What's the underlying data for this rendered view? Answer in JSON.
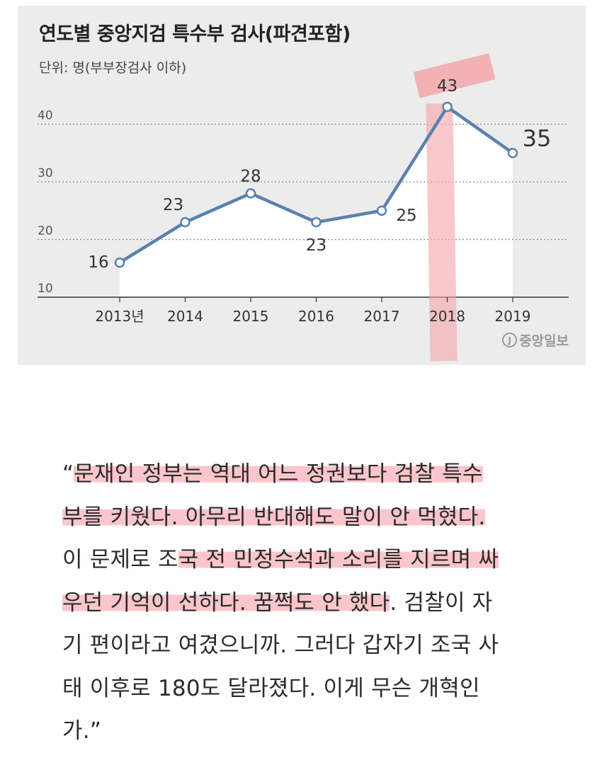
{
  "chart_data": {
    "type": "line",
    "title": "연도별 중앙지검 특수부 검사(파견포함)",
    "unit": "단위: 명(부부장검사 이하)",
    "categories": [
      "2013년",
      "2014",
      "2015",
      "2016",
      "2017",
      "2018",
      "2019"
    ],
    "values": [
      16,
      23,
      28,
      23,
      25,
      43,
      35
    ],
    "ylim": [
      10,
      45
    ],
    "y_ticks": [
      10,
      20,
      30,
      40
    ],
    "grid": "horizontal-dotted",
    "series_color": "#5b82ad",
    "highlight_color": "#f4a4a8",
    "highlight_category": "2018",
    "source": "중앙일보"
  },
  "quote": {
    "lines": [
      [
        {
          "t": "“",
          "hl": false
        },
        {
          "t": "문재인 정부는 역대 어느 정권보다 검찰 특수",
          "hl": true
        }
      ],
      [
        {
          "t": "부를 키웠다. 아무리 반대해도 말이 안 먹혔다.",
          "hl": true
        }
      ],
      [
        {
          "t": "이 문제로 조",
          "hl": false
        },
        {
          "t": "국 전 민정수석과 소리를 지르며 싸",
          "hl": true
        }
      ],
      [
        {
          "t": "우던 기억이 선하다. 꿈쩍도 안 했다",
          "hl": true
        },
        {
          "t": ". 검찰이 자",
          "hl": false
        }
      ],
      [
        {
          "t": "기 편이라고 여겼으니까. 그러다 갑자기 조국 사",
          "hl": false
        }
      ],
      [
        {
          "t": "태 이후로 180도 달라졌다. 이게 무슨 개혁인",
          "hl": false
        }
      ],
      [
        {
          "t": "가.”",
          "hl": false
        }
      ]
    ]
  }
}
